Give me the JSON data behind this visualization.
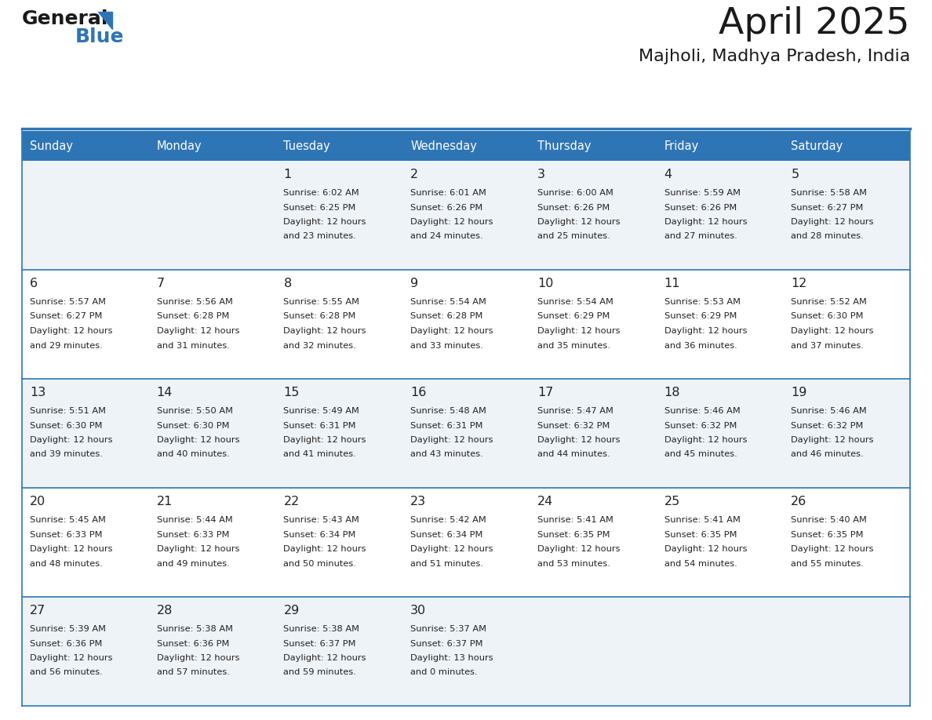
{
  "title": "April 2025",
  "subtitle": "Majholi, Madhya Pradesh, India",
  "header_color": "#2E75B6",
  "header_text_color": "#FFFFFF",
  "cell_bg_even": "#EEF3F8",
  "cell_bg_odd": "#FFFFFF",
  "border_color": "#2E75B6",
  "text_color": "#222222",
  "day_headers": [
    "Sunday",
    "Monday",
    "Tuesday",
    "Wednesday",
    "Thursday",
    "Friday",
    "Saturday"
  ],
  "calendar": [
    [
      {
        "day": "",
        "sunrise": "",
        "sunset": "",
        "daylight1": "",
        "daylight2": ""
      },
      {
        "day": "",
        "sunrise": "",
        "sunset": "",
        "daylight1": "",
        "daylight2": ""
      },
      {
        "day": "1",
        "sunrise": "Sunrise: 6:02 AM",
        "sunset": "Sunset: 6:25 PM",
        "daylight1": "Daylight: 12 hours",
        "daylight2": "and 23 minutes."
      },
      {
        "day": "2",
        "sunrise": "Sunrise: 6:01 AM",
        "sunset": "Sunset: 6:26 PM",
        "daylight1": "Daylight: 12 hours",
        "daylight2": "and 24 minutes."
      },
      {
        "day": "3",
        "sunrise": "Sunrise: 6:00 AM",
        "sunset": "Sunset: 6:26 PM",
        "daylight1": "Daylight: 12 hours",
        "daylight2": "and 25 minutes."
      },
      {
        "day": "4",
        "sunrise": "Sunrise: 5:59 AM",
        "sunset": "Sunset: 6:26 PM",
        "daylight1": "Daylight: 12 hours",
        "daylight2": "and 27 minutes."
      },
      {
        "day": "5",
        "sunrise": "Sunrise: 5:58 AM",
        "sunset": "Sunset: 6:27 PM",
        "daylight1": "Daylight: 12 hours",
        "daylight2": "and 28 minutes."
      }
    ],
    [
      {
        "day": "6",
        "sunrise": "Sunrise: 5:57 AM",
        "sunset": "Sunset: 6:27 PM",
        "daylight1": "Daylight: 12 hours",
        "daylight2": "and 29 minutes."
      },
      {
        "day": "7",
        "sunrise": "Sunrise: 5:56 AM",
        "sunset": "Sunset: 6:28 PM",
        "daylight1": "Daylight: 12 hours",
        "daylight2": "and 31 minutes."
      },
      {
        "day": "8",
        "sunrise": "Sunrise: 5:55 AM",
        "sunset": "Sunset: 6:28 PM",
        "daylight1": "Daylight: 12 hours",
        "daylight2": "and 32 minutes."
      },
      {
        "day": "9",
        "sunrise": "Sunrise: 5:54 AM",
        "sunset": "Sunset: 6:28 PM",
        "daylight1": "Daylight: 12 hours",
        "daylight2": "and 33 minutes."
      },
      {
        "day": "10",
        "sunrise": "Sunrise: 5:54 AM",
        "sunset": "Sunset: 6:29 PM",
        "daylight1": "Daylight: 12 hours",
        "daylight2": "and 35 minutes."
      },
      {
        "day": "11",
        "sunrise": "Sunrise: 5:53 AM",
        "sunset": "Sunset: 6:29 PM",
        "daylight1": "Daylight: 12 hours",
        "daylight2": "and 36 minutes."
      },
      {
        "day": "12",
        "sunrise": "Sunrise: 5:52 AM",
        "sunset": "Sunset: 6:30 PM",
        "daylight1": "Daylight: 12 hours",
        "daylight2": "and 37 minutes."
      }
    ],
    [
      {
        "day": "13",
        "sunrise": "Sunrise: 5:51 AM",
        "sunset": "Sunset: 6:30 PM",
        "daylight1": "Daylight: 12 hours",
        "daylight2": "and 39 minutes."
      },
      {
        "day": "14",
        "sunrise": "Sunrise: 5:50 AM",
        "sunset": "Sunset: 6:30 PM",
        "daylight1": "Daylight: 12 hours",
        "daylight2": "and 40 minutes."
      },
      {
        "day": "15",
        "sunrise": "Sunrise: 5:49 AM",
        "sunset": "Sunset: 6:31 PM",
        "daylight1": "Daylight: 12 hours",
        "daylight2": "and 41 minutes."
      },
      {
        "day": "16",
        "sunrise": "Sunrise: 5:48 AM",
        "sunset": "Sunset: 6:31 PM",
        "daylight1": "Daylight: 12 hours",
        "daylight2": "and 43 minutes."
      },
      {
        "day": "17",
        "sunrise": "Sunrise: 5:47 AM",
        "sunset": "Sunset: 6:32 PM",
        "daylight1": "Daylight: 12 hours",
        "daylight2": "and 44 minutes."
      },
      {
        "day": "18",
        "sunrise": "Sunrise: 5:46 AM",
        "sunset": "Sunset: 6:32 PM",
        "daylight1": "Daylight: 12 hours",
        "daylight2": "and 45 minutes."
      },
      {
        "day": "19",
        "sunrise": "Sunrise: 5:46 AM",
        "sunset": "Sunset: 6:32 PM",
        "daylight1": "Daylight: 12 hours",
        "daylight2": "and 46 minutes."
      }
    ],
    [
      {
        "day": "20",
        "sunrise": "Sunrise: 5:45 AM",
        "sunset": "Sunset: 6:33 PM",
        "daylight1": "Daylight: 12 hours",
        "daylight2": "and 48 minutes."
      },
      {
        "day": "21",
        "sunrise": "Sunrise: 5:44 AM",
        "sunset": "Sunset: 6:33 PM",
        "daylight1": "Daylight: 12 hours",
        "daylight2": "and 49 minutes."
      },
      {
        "day": "22",
        "sunrise": "Sunrise: 5:43 AM",
        "sunset": "Sunset: 6:34 PM",
        "daylight1": "Daylight: 12 hours",
        "daylight2": "and 50 minutes."
      },
      {
        "day": "23",
        "sunrise": "Sunrise: 5:42 AM",
        "sunset": "Sunset: 6:34 PM",
        "daylight1": "Daylight: 12 hours",
        "daylight2": "and 51 minutes."
      },
      {
        "day": "24",
        "sunrise": "Sunrise: 5:41 AM",
        "sunset": "Sunset: 6:35 PM",
        "daylight1": "Daylight: 12 hours",
        "daylight2": "and 53 minutes."
      },
      {
        "day": "25",
        "sunrise": "Sunrise: 5:41 AM",
        "sunset": "Sunset: 6:35 PM",
        "daylight1": "Daylight: 12 hours",
        "daylight2": "and 54 minutes."
      },
      {
        "day": "26",
        "sunrise": "Sunrise: 5:40 AM",
        "sunset": "Sunset: 6:35 PM",
        "daylight1": "Daylight: 12 hours",
        "daylight2": "and 55 minutes."
      }
    ],
    [
      {
        "day": "27",
        "sunrise": "Sunrise: 5:39 AM",
        "sunset": "Sunset: 6:36 PM",
        "daylight1": "Daylight: 12 hours",
        "daylight2": "and 56 minutes."
      },
      {
        "day": "28",
        "sunrise": "Sunrise: 5:38 AM",
        "sunset": "Sunset: 6:36 PM",
        "daylight1": "Daylight: 12 hours",
        "daylight2": "and 57 minutes."
      },
      {
        "day": "29",
        "sunrise": "Sunrise: 5:38 AM",
        "sunset": "Sunset: 6:37 PM",
        "daylight1": "Daylight: 12 hours",
        "daylight2": "and 59 minutes."
      },
      {
        "day": "30",
        "sunrise": "Sunrise: 5:37 AM",
        "sunset": "Sunset: 6:37 PM",
        "daylight1": "Daylight: 13 hours",
        "daylight2": "and 0 minutes."
      },
      {
        "day": "",
        "sunrise": "",
        "sunset": "",
        "daylight1": "",
        "daylight2": ""
      },
      {
        "day": "",
        "sunrise": "",
        "sunset": "",
        "daylight1": "",
        "daylight2": ""
      },
      {
        "day": "",
        "sunrise": "",
        "sunset": "",
        "daylight1": "",
        "daylight2": ""
      }
    ]
  ],
  "logo_color_general": "#1a1a1a",
  "logo_color_blue": "#2E75B6",
  "fig_width": 11.88,
  "fig_height": 9.18,
  "dpi": 100
}
